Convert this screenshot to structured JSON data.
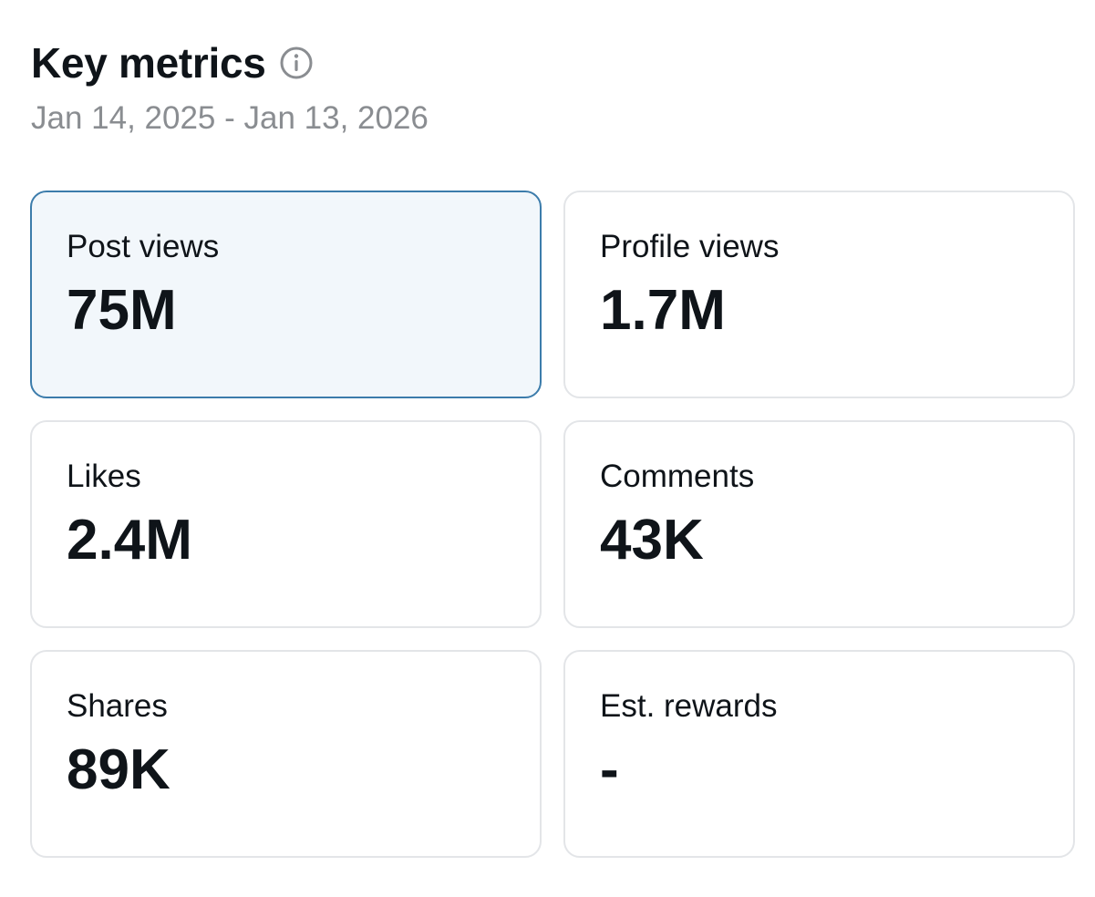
{
  "header": {
    "title": "Key metrics",
    "info_icon": "info-circle-icon",
    "date_range": "Jan 14, 2025 - Jan 13, 2026"
  },
  "colors": {
    "active_border": "#3c7cab",
    "active_background": "#f2f7fb",
    "card_border": "#e3e5e8",
    "subtitle": "#8a8d91"
  },
  "metrics": [
    {
      "label": "Post views",
      "value": "75M",
      "selected": true
    },
    {
      "label": "Profile views",
      "value": "1.7M",
      "selected": false
    },
    {
      "label": "Likes",
      "value": "2.4M",
      "selected": false
    },
    {
      "label": "Comments",
      "value": "43K",
      "selected": false
    },
    {
      "label": "Shares",
      "value": "89K",
      "selected": false
    },
    {
      "label": "Est. rewards",
      "value": "-",
      "selected": false
    }
  ]
}
